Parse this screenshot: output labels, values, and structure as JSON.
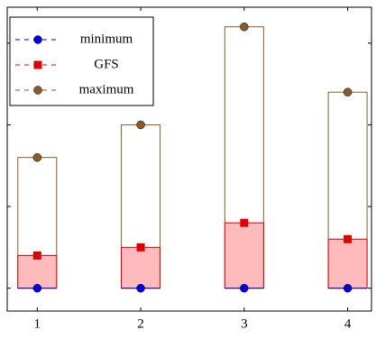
{
  "chart_data": {
    "type": "range-bar",
    "x": [
      1,
      2,
      3,
      4
    ],
    "xlim": [
      0.71,
      4.23
    ],
    "xticks": [
      1,
      2,
      3,
      4
    ],
    "ylim": [
      -0.28,
      3.44
    ],
    "yticks": [
      0,
      1,
      2,
      3
    ],
    "legend": "upper left",
    "series": [
      {
        "name": "minimum",
        "color": "#0000dd",
        "marker": "circle",
        "values": [
          0,
          0,
          0,
          0
        ]
      },
      {
        "name": "GFS",
        "color": "#dd0000",
        "marker": "square",
        "fill": "#ffbbbb",
        "values": [
          0.4,
          0.5,
          0.8,
          0.6
        ]
      },
      {
        "name": "maximum",
        "color": "#8b5a2b",
        "marker": "circle",
        "values": [
          1.6,
          2.0,
          3.2,
          2.4
        ]
      }
    ]
  }
}
